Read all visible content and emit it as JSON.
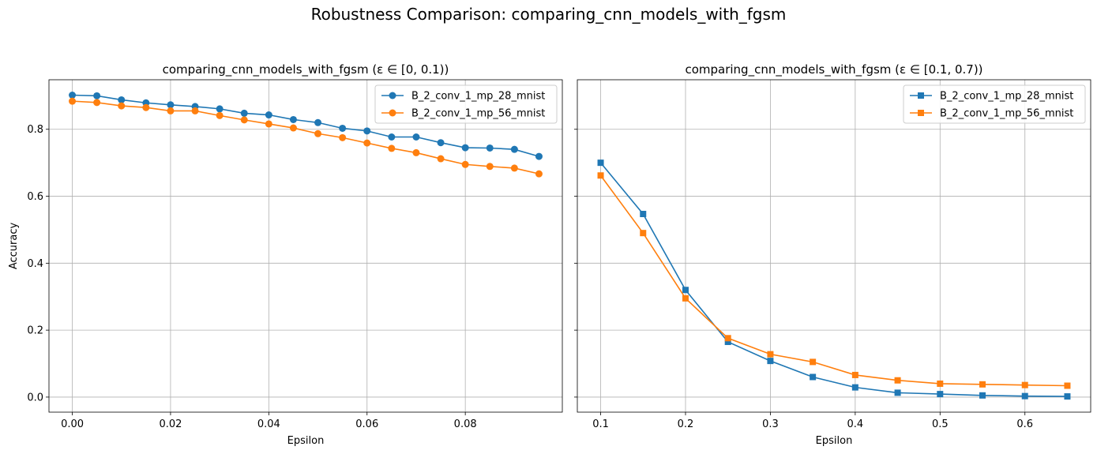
{
  "suptitle": "Robustness Comparison: comparing_cnn_models_with_fgsm",
  "chart_data": [
    {
      "type": "line",
      "title": "comparing_cnn_models_with_fgsm (ε ∈ [0, 0.1))",
      "xlabel": "Epsilon",
      "ylabel": "Accuracy",
      "xlim": [
        -0.00475,
        0.09975
      ],
      "ylim": [
        -0.045,
        0.948
      ],
      "xticks": [
        0.0,
        0.02,
        0.04,
        0.06,
        0.08
      ],
      "xtick_labels": [
        "0.00",
        "0.02",
        "0.04",
        "0.06",
        "0.08"
      ],
      "yticks": [
        0.0,
        0.2,
        0.4,
        0.6,
        0.8
      ],
      "ytick_labels": [
        "0.0",
        "0.2",
        "0.4",
        "0.6",
        "0.8"
      ],
      "grid": true,
      "legend_position": "upper right",
      "marker": "circle",
      "x": [
        0.0,
        0.005,
        0.01,
        0.015,
        0.02,
        0.025,
        0.03,
        0.035,
        0.04,
        0.045,
        0.05,
        0.055,
        0.06,
        0.065,
        0.07,
        0.075,
        0.08,
        0.085,
        0.09,
        0.095
      ],
      "series": [
        {
          "name": "B_2_conv_1_mp_28_mnist",
          "color": "#1f77b4",
          "values": [
            0.902,
            0.9,
            0.888,
            0.879,
            0.873,
            0.868,
            0.861,
            0.848,
            0.843,
            0.829,
            0.82,
            0.803,
            0.795,
            0.777,
            0.777,
            0.76,
            0.745,
            0.744,
            0.74,
            0.719
          ]
        },
        {
          "name": "B_2_conv_1_mp_56_mnist",
          "color": "#ff7f0e",
          "values": [
            0.884,
            0.88,
            0.87,
            0.865,
            0.855,
            0.855,
            0.841,
            0.828,
            0.816,
            0.804,
            0.787,
            0.775,
            0.759,
            0.743,
            0.73,
            0.712,
            0.695,
            0.689,
            0.684,
            0.667
          ]
        }
      ]
    },
    {
      "type": "line",
      "title": "comparing_cnn_models_with_fgsm (ε ∈ [0.1, 0.7))",
      "xlabel": "Epsilon",
      "ylabel": "",
      "xlim": [
        0.0725,
        0.6775
      ],
      "ylim": [
        -0.045,
        0.948
      ],
      "xticks": [
        0.1,
        0.2,
        0.3,
        0.4,
        0.5,
        0.6
      ],
      "xtick_labels": [
        "0.1",
        "0.2",
        "0.3",
        "0.4",
        "0.5",
        "0.6"
      ],
      "yticks": [
        0.0,
        0.2,
        0.4,
        0.6,
        0.8
      ],
      "ytick_labels": [],
      "grid": true,
      "legend_position": "upper right",
      "marker": "square",
      "x": [
        0.1,
        0.15,
        0.2,
        0.25,
        0.3,
        0.35,
        0.4,
        0.45,
        0.5,
        0.55,
        0.6,
        0.65
      ],
      "series": [
        {
          "name": "B_2_conv_1_mp_28_mnist",
          "color": "#1f77b4",
          "values": [
            0.7,
            0.547,
            0.32,
            0.165,
            0.108,
            0.06,
            0.029,
            0.013,
            0.009,
            0.005,
            0.003,
            0.002
          ]
        },
        {
          "name": "B_2_conv_1_mp_56_mnist",
          "color": "#ff7f0e",
          "values": [
            0.662,
            0.49,
            0.295,
            0.176,
            0.128,
            0.105,
            0.066,
            0.05,
            0.04,
            0.038,
            0.036,
            0.034
          ]
        }
      ]
    }
  ]
}
